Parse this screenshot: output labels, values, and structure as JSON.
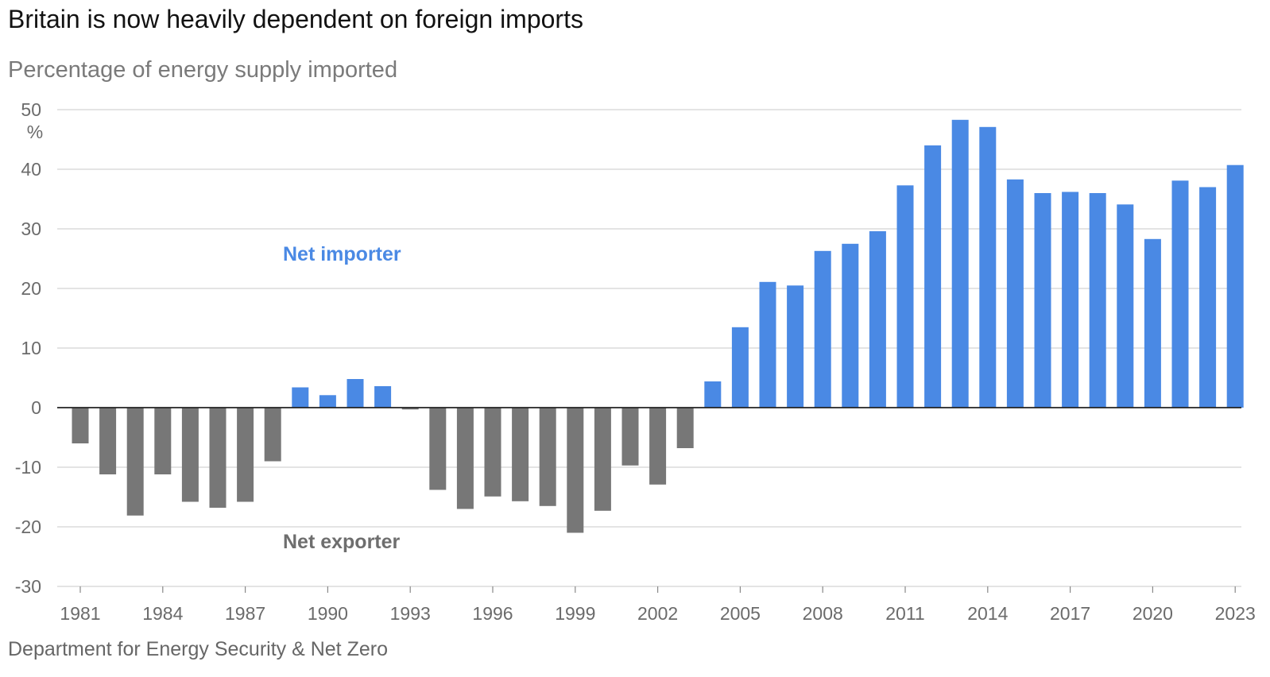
{
  "title": "Britain is now heavily dependent on foreign imports",
  "subtitle": "Percentage of energy supply imported",
  "source": "Department for Energy Security & Net Zero",
  "colors": {
    "positive": "#4a89e4",
    "negative": "#777777",
    "grid": "#dcdcdc",
    "zero_line": "#222222",
    "annotation_import": "#4a89e4",
    "annotation_export": "#6e6e6e"
  },
  "chart_data": {
    "type": "bar",
    "ylabel": "",
    "y_unit_label": "%",
    "ylim": [
      -30,
      50
    ],
    "y_ticks": [
      50,
      40,
      30,
      20,
      10,
      0,
      -10,
      -20,
      -30
    ],
    "x_tick_labels": [
      "1981",
      "1984",
      "1987",
      "1990",
      "1993",
      "1996",
      "1999",
      "2002",
      "2005",
      "2008",
      "2011",
      "2014",
      "2017",
      "2020",
      "2023"
    ],
    "categories": [
      "1981",
      "1982",
      "1983",
      "1984",
      "1985",
      "1986",
      "1987",
      "1988",
      "1989",
      "1990",
      "1991",
      "1992",
      "1993",
      "1994",
      "1995",
      "1996",
      "1997",
      "1998",
      "1999",
      "2000",
      "2001",
      "2002",
      "2003",
      "2004",
      "2005",
      "2006",
      "2007",
      "2008",
      "2009",
      "2010",
      "2011",
      "2012",
      "2013",
      "2014",
      "2015",
      "2016",
      "2017",
      "2018",
      "2019",
      "2020",
      "2021",
      "2022",
      "2023"
    ],
    "values": [
      -6,
      -11.2,
      -18.1,
      -11.2,
      -15.8,
      -16.8,
      -15.8,
      -9,
      3.4,
      2.1,
      4.8,
      3.6,
      -0.3,
      -13.8,
      -17,
      -14.9,
      -15.7,
      -16.5,
      -21,
      -17.3,
      -9.7,
      -12.9,
      -6.8,
      4.4,
      13.5,
      21.1,
      20.5,
      26.3,
      27.5,
      29.6,
      37.3,
      44,
      48.3,
      47.1,
      38.3,
      36,
      36.2,
      36,
      34.1,
      28.3,
      38.1,
      37,
      40.7
    ],
    "annotations": [
      {
        "text": "Net importer"
      },
      {
        "text": "Net exporter"
      }
    ]
  }
}
